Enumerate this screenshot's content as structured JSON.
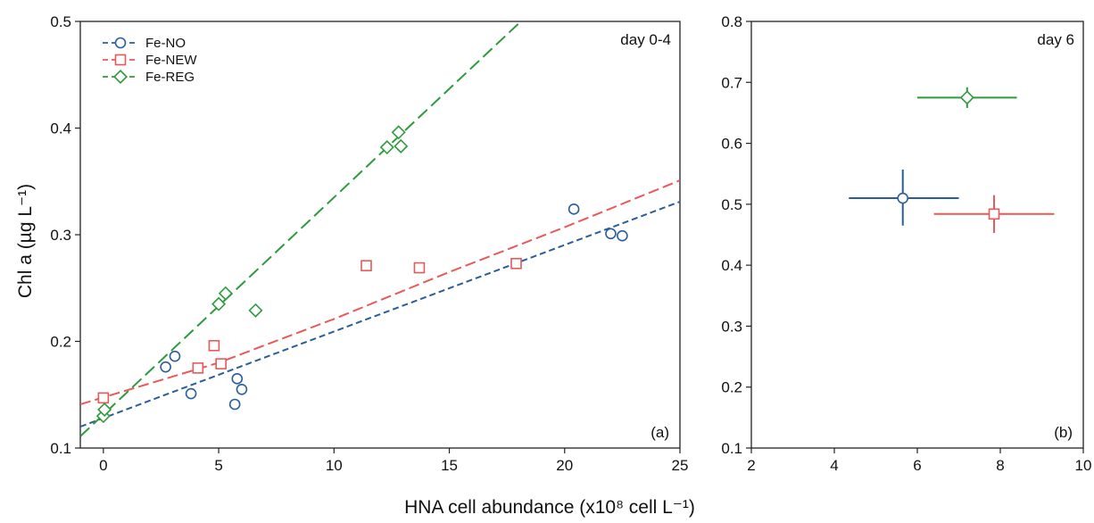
{
  "xlabel": "HNA cell abundance (x10⁸ cell L⁻¹)",
  "ylabel": "Chl a (µg L⁻¹)",
  "colors": {
    "Fe-NO": "#2a5d9a",
    "Fe-NEW": "#e8595a",
    "Fe-REG": "#2e9a3e"
  },
  "chart_data": [
    {
      "type": "scatter",
      "panel_label": "(a)",
      "annotation": "day 0-4",
      "xlim": [
        -1,
        25
      ],
      "ylim": [
        0.1,
        0.5
      ],
      "xticks": [
        0,
        5,
        10,
        15,
        20,
        25
      ],
      "yticks": [
        0.1,
        0.2,
        0.3,
        0.4,
        0.5
      ],
      "ytick_labels": [
        "0.1",
        "0.2",
        "0.3",
        "0.4",
        "0.5"
      ],
      "legend_position": "top-left",
      "series": [
        {
          "name": "Fe-NO",
          "marker": "circle",
          "points": [
            [
              2.7,
              0.176
            ],
            [
              3.1,
              0.186
            ],
            [
              3.8,
              0.151
            ],
            [
              5.7,
              0.141
            ],
            [
              5.8,
              0.165
            ],
            [
              6.0,
              0.155
            ],
            [
              20.4,
              0.324
            ],
            [
              22.0,
              0.301
            ],
            [
              22.5,
              0.299
            ]
          ],
          "fit_line": [
            [
              -1,
              0.12
            ],
            [
              25,
              0.331
            ]
          ]
        },
        {
          "name": "Fe-NEW",
          "marker": "square",
          "points": [
            [
              0.0,
              0.147
            ],
            [
              4.1,
              0.175
            ],
            [
              4.8,
              0.196
            ],
            [
              5.1,
              0.179
            ],
            [
              11.4,
              0.271
            ],
            [
              13.7,
              0.269
            ],
            [
              17.9,
              0.273
            ]
          ],
          "fit_line": [
            [
              -1,
              0.141
            ],
            [
              5,
              0.18
            ],
            [
              10,
              0.221
            ],
            [
              15,
              0.265
            ],
            [
              20,
              0.307
            ],
            [
              25,
              0.351
            ]
          ]
        },
        {
          "name": "Fe-REG",
          "marker": "diamond",
          "points": [
            [
              0.0,
              0.13
            ],
            [
              0.05,
              0.136
            ],
            [
              5.0,
              0.235
            ],
            [
              5.3,
              0.245
            ],
            [
              6.6,
              0.229
            ],
            [
              12.3,
              0.382
            ],
            [
              12.8,
              0.396
            ],
            [
              12.9,
              0.383
            ]
          ],
          "fit_line": [
            [
              -1,
              0.111
            ],
            [
              18.1,
              0.5
            ]
          ]
        }
      ]
    },
    {
      "type": "scatter",
      "panel_label": "(b)",
      "annotation": "day 6",
      "xlim": [
        2,
        10
      ],
      "ylim": [
        0.1,
        0.8
      ],
      "xticks": [
        2,
        4,
        6,
        8,
        10
      ],
      "yticks": [
        0.1,
        0.2,
        0.3,
        0.4,
        0.5,
        0.6,
        0.7,
        0.8
      ],
      "ytick_labels": [
        "0.1",
        "0.2",
        "0.3",
        "0.4",
        "0.5",
        "0.6",
        "0.7",
        "0.8"
      ],
      "series": [
        {
          "name": "Fe-NO",
          "marker": "circle",
          "points": [
            [
              5.65,
              0.51
            ]
          ],
          "x_err": [
            [
              4.35,
              7.0
            ]
          ],
          "y_err": [
            [
              0.465,
              0.557
            ]
          ]
        },
        {
          "name": "Fe-NEW",
          "marker": "square",
          "points": [
            [
              7.85,
              0.484
            ]
          ],
          "x_err": [
            [
              6.4,
              9.3
            ]
          ],
          "y_err": [
            [
              0.453,
              0.515
            ]
          ]
        },
        {
          "name": "Fe-REG",
          "marker": "diamond",
          "points": [
            [
              7.2,
              0.675
            ]
          ],
          "x_err": [
            [
              6.0,
              8.4
            ]
          ],
          "y_err": [
            [
              0.658,
              0.692
            ]
          ]
        }
      ]
    }
  ]
}
